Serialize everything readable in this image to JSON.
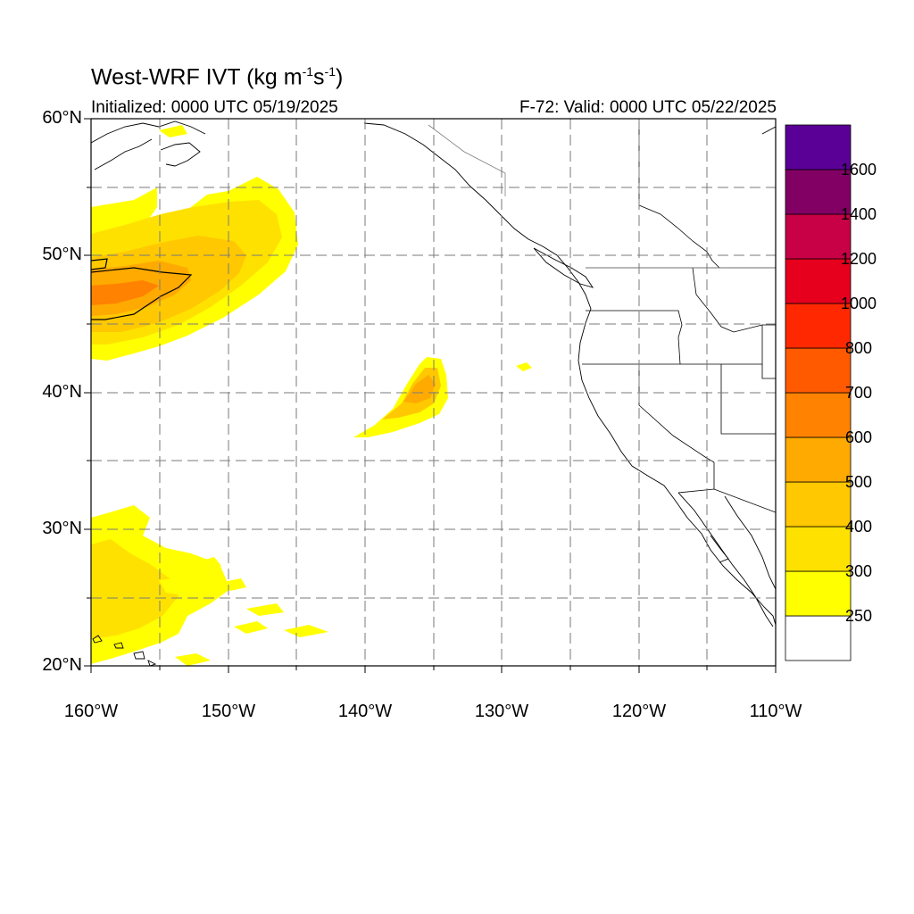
{
  "title": {
    "main": "West-WRF IVT (kg m",
    "sup1": "-1",
    "mid": "s",
    "sup2": "-1",
    "close": ")"
  },
  "init_text": "Initialized: 0000 UTC 05/19/2025",
  "valid_text": "F-72: Valid: 0000 UTC 05/22/2025",
  "map": {
    "lon_range": [
      -160,
      -110
    ],
    "lat_range": [
      20,
      60
    ],
    "grid": true,
    "lat_labels": [
      "60°N",
      "50°N",
      "40°N",
      "30°N",
      "20°N"
    ],
    "lon_labels": [
      "160°W",
      "150°W",
      "140°W",
      "130°W",
      "120°W",
      "110°W"
    ]
  },
  "colorbar": {
    "label_values": [
      "250",
      "300",
      "400",
      "500",
      "600",
      "700",
      "800",
      "1000",
      "1200",
      "1400",
      "1600"
    ],
    "colors": [
      "#ffffff",
      "#ffff00",
      "#ffe100",
      "#ffc800",
      "#ffaa00",
      "#ff8200",
      "#ff5a00",
      "#ff2800",
      "#e6001e",
      "#c80046",
      "#820064",
      "#5a0096"
    ]
  },
  "ivt_colors": {
    "c250": "#ffff00",
    "c300": "#ffe100",
    "c400": "#ffc800",
    "c500": "#ffaa00",
    "c600": "#ff8200"
  }
}
